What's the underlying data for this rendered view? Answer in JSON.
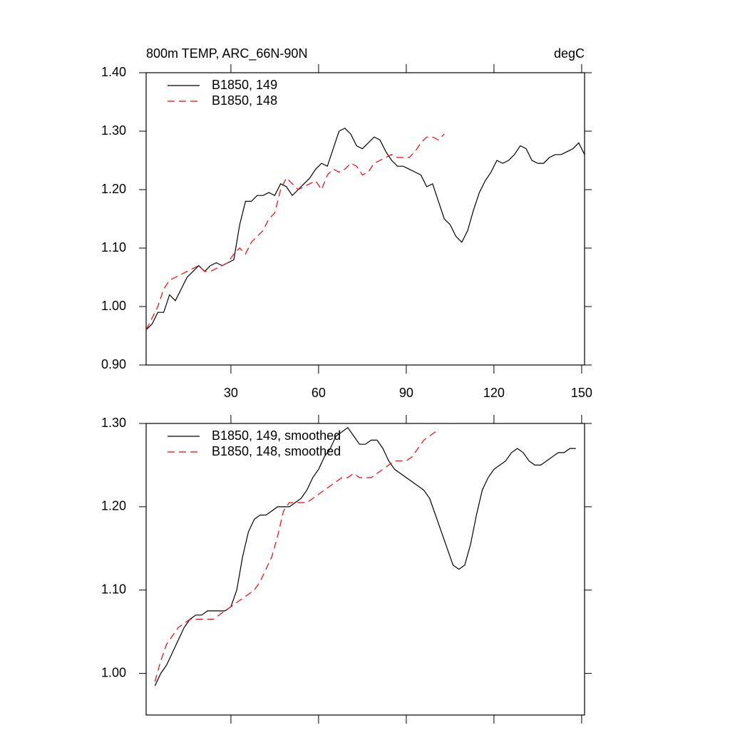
{
  "chart_data": [
    {
      "type": "line",
      "title": "800m TEMP, ARC_66N-90N",
      "units": "degC",
      "legend": "upper left",
      "x": [
        1,
        3,
        5,
        7,
        9,
        11,
        13,
        15,
        17,
        19,
        21,
        23,
        25,
        27,
        29,
        31,
        33,
        35,
        37,
        39,
        41,
        43,
        45,
        47,
        49,
        51,
        53,
        55,
        57,
        59,
        61,
        63,
        65,
        67,
        69,
        71,
        73,
        75,
        77,
        79,
        81,
        83,
        85,
        87,
        89,
        91,
        93,
        95,
        97,
        99,
        101,
        103,
        105,
        107,
        109,
        111,
        113,
        115,
        117,
        119,
        121,
        123,
        125,
        127,
        129,
        131,
        133,
        135,
        137,
        139,
        141,
        143,
        145,
        147,
        149,
        151
      ],
      "series": [
        {
          "name": "B1850, 149",
          "color": "#000000",
          "dashed": false,
          "values": [
            0.96,
            0.97,
            0.99,
            0.99,
            1.02,
            1.01,
            1.03,
            1.05,
            1.06,
            1.07,
            1.06,
            1.07,
            1.075,
            1.07,
            1.075,
            1.08,
            1.14,
            1.18,
            1.18,
            1.19,
            1.19,
            1.195,
            1.19,
            1.21,
            1.205,
            1.19,
            1.2,
            1.21,
            1.22,
            1.235,
            1.245,
            1.24,
            1.27,
            1.3,
            1.305,
            1.295,
            1.275,
            1.27,
            1.28,
            1.29,
            1.285,
            1.265,
            1.25,
            1.24,
            1.24,
            1.235,
            1.23,
            1.225,
            1.205,
            1.21,
            1.18,
            1.15,
            1.14,
            1.12,
            1.11,
            1.13,
            1.165,
            1.195,
            1.215,
            1.23,
            1.25,
            1.245,
            1.25,
            1.26,
            1.275,
            1.27,
            1.25,
            1.245,
            1.245,
            1.255,
            1.26,
            1.26,
            1.265,
            1.27,
            1.28,
            1.26
          ]
        },
        {
          "name": "B1850, 148",
          "color": "#ff0000",
          "dashed": true,
          "values": [
            0.96,
            0.98,
            1.0,
            1.03,
            1.045,
            1.05,
            1.055,
            1.06,
            1.065,
            1.07,
            1.06,
            1.06,
            1.065,
            1.07,
            1.075,
            1.09,
            1.1,
            1.09,
            1.11,
            1.12,
            1.13,
            1.15,
            1.16,
            1.2,
            1.22,
            1.21,
            1.2,
            1.205,
            1.21,
            1.215,
            1.2,
            1.225,
            1.235,
            1.23,
            1.235,
            1.245,
            1.24,
            1.225,
            1.23,
            1.245,
            1.25,
            1.255,
            1.26,
            1.255,
            1.255,
            1.255,
            1.265,
            1.28,
            1.29,
            1.29,
            1.285,
            1.295,
            null,
            null,
            null,
            null,
            null,
            null,
            null,
            null,
            null,
            null,
            null,
            null,
            null,
            null,
            null,
            null,
            null,
            null,
            null,
            null,
            null,
            null,
            null,
            null
          ]
        }
      ],
      "xlim": [
        1,
        151
      ],
      "xticks": [
        30,
        60,
        90,
        120,
        150
      ],
      "ylim": [
        0.9,
        1.4
      ],
      "yticks": [
        {
          "value": 0.9,
          "label": "0.90"
        },
        {
          "value": 1.0,
          "label": "1.00"
        },
        {
          "value": 1.1,
          "label": "1.10"
        },
        {
          "value": 1.2,
          "label": "1.20"
        },
        {
          "value": 1.3,
          "label": "1.30"
        },
        {
          "value": 1.4,
          "label": "1.40"
        }
      ]
    },
    {
      "type": "line",
      "legend": "upper left",
      "x": [
        4,
        6,
        8,
        10,
        12,
        14,
        16,
        18,
        20,
        22,
        24,
        26,
        28,
        30,
        32,
        34,
        36,
        38,
        40,
        42,
        44,
        46,
        48,
        50,
        52,
        54,
        56,
        58,
        60,
        62,
        64,
        66,
        68,
        70,
        72,
        74,
        76,
        78,
        80,
        82,
        84,
        86,
        88,
        90,
        92,
        94,
        96,
        98,
        100,
        102,
        104,
        106,
        108,
        110,
        112,
        114,
        116,
        118,
        120,
        122,
        124,
        126,
        128,
        130,
        132,
        134,
        136,
        138,
        140,
        142,
        144,
        146,
        148
      ],
      "series": [
        {
          "name": "B1850, 149, smoothed",
          "color": "#000000",
          "dashed": false,
          "values": [
            0.985,
            1.0,
            1.01,
            1.025,
            1.04,
            1.055,
            1.065,
            1.07,
            1.07,
            1.075,
            1.075,
            1.075,
            1.075,
            1.08,
            1.1,
            1.14,
            1.17,
            1.185,
            1.19,
            1.19,
            1.195,
            1.2,
            1.2,
            1.2,
            1.205,
            1.21,
            1.22,
            1.235,
            1.245,
            1.26,
            1.27,
            1.285,
            1.29,
            1.295,
            1.285,
            1.275,
            1.275,
            1.28,
            1.28,
            1.27,
            1.255,
            1.245,
            1.24,
            1.235,
            1.23,
            1.225,
            1.22,
            1.21,
            1.19,
            1.17,
            1.15,
            1.13,
            1.125,
            1.13,
            1.155,
            1.19,
            1.22,
            1.235,
            1.245,
            1.25,
            1.255,
            1.265,
            1.27,
            1.265,
            1.255,
            1.25,
            1.25,
            1.255,
            1.26,
            1.265,
            1.265,
            1.27,
            1.27
          ]
        },
        {
          "name": "B1850, 148, smoothed",
          "color": "#ff0000",
          "dashed": true,
          "values": [
            0.99,
            1.015,
            1.035,
            1.045,
            1.055,
            1.06,
            1.065,
            1.065,
            1.065,
            1.065,
            1.065,
            1.07,
            1.075,
            1.08,
            1.085,
            1.09,
            1.095,
            1.1,
            1.11,
            1.125,
            1.14,
            1.165,
            1.195,
            1.205,
            1.205,
            1.205,
            1.205,
            1.21,
            1.215,
            1.22,
            1.225,
            1.23,
            1.235,
            1.235,
            1.24,
            1.235,
            1.235,
            1.235,
            1.24,
            1.245,
            1.25,
            1.255,
            1.255,
            1.255,
            1.26,
            1.27,
            1.28,
            1.285,
            1.29,
            null,
            null,
            null,
            null,
            null,
            null,
            null,
            null,
            null,
            null,
            null,
            null,
            null,
            null,
            null,
            null,
            null,
            null,
            null,
            null,
            null,
            null,
            null,
            null
          ]
        }
      ],
      "xlim": [
        1,
        151
      ],
      "xticks": [
        30,
        60,
        90,
        120,
        150
      ],
      "ylim": [
        0.95,
        1.3
      ],
      "yticks": [
        {
          "value": 1.0,
          "label": "1.00"
        },
        {
          "value": 1.1,
          "label": "1.10"
        },
        {
          "value": 1.2,
          "label": "1.20"
        },
        {
          "value": 1.3,
          "label": "1.30"
        }
      ]
    }
  ]
}
